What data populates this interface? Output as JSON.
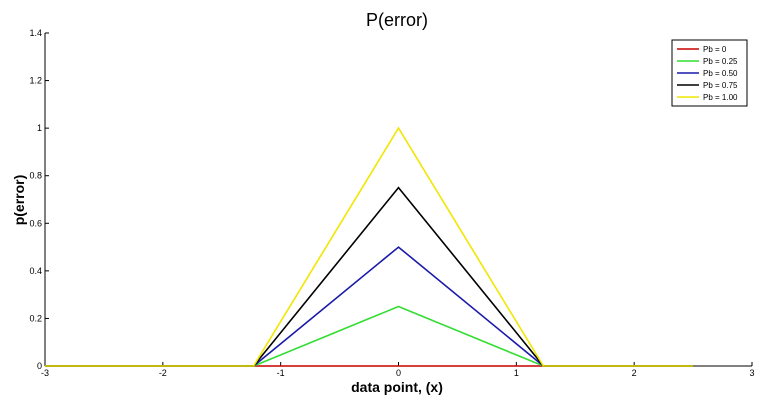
{
  "chart_data": {
    "type": "line",
    "title": "P(error)",
    "xlabel": "data point, (x)",
    "ylabel": "p(error)",
    "xlim": [
      -3,
      3
    ],
    "ylim": [
      0,
      1.4
    ],
    "xticks": [
      "-3",
      "-2",
      "-1",
      "0",
      "1",
      "2",
      "3"
    ],
    "yticks": [
      "0",
      "0.2",
      "0.4",
      "0.6",
      "0.8",
      "1",
      "1.2",
      "1.4"
    ],
    "grid": false,
    "legend_position": "top-right",
    "series": [
      {
        "name": "Pb = 0",
        "color": "#cc0000",
        "x": [
          -3,
          -1.23,
          0,
          1.23,
          2.5
        ],
        "y": [
          0,
          0,
          0,
          0,
          0
        ]
      },
      {
        "name": "Pb = 0.25",
        "color": "#33dd33",
        "x": [
          -3,
          -1.23,
          0,
          1.23,
          2.5
        ],
        "y": [
          0,
          0,
          0.25,
          0,
          0
        ]
      },
      {
        "name": "Pb = 0.50",
        "color": "#1a1aaa",
        "x": [
          -3,
          -1.23,
          0,
          1.23,
          2.5
        ],
        "y": [
          0,
          0,
          0.5,
          0,
          0
        ]
      },
      {
        "name": "Pb = 0.75",
        "color": "#000000",
        "x": [
          -3,
          -1.23,
          0,
          1.23,
          2.5
        ],
        "y": [
          0,
          0,
          0.75,
          0,
          0
        ]
      },
      {
        "name": "Pb = 1.00",
        "color": "#f2e600",
        "x": [
          -3,
          -1.23,
          0,
          1.23,
          2.5
        ],
        "y": [
          0,
          0,
          1.0,
          0,
          0
        ]
      }
    ]
  }
}
